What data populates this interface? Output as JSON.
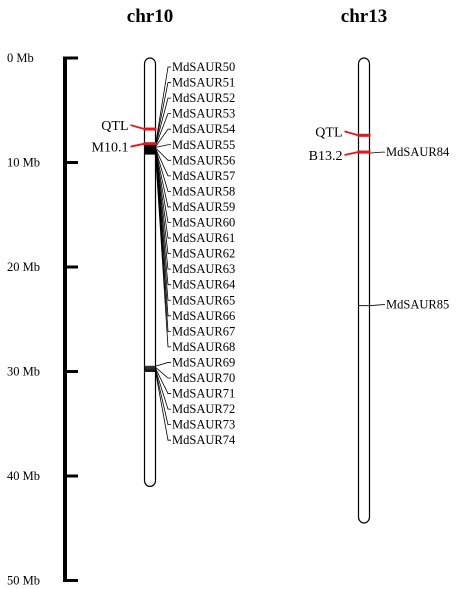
{
  "chart_data": {
    "type": "diagram",
    "scale": {
      "unit": "Mb",
      "min": 0,
      "max": 50,
      "ticks": [
        {
          "value": 0,
          "label": "0 Mb"
        },
        {
          "value": 10,
          "label": "10 Mb"
        },
        {
          "value": 20,
          "label": "20 Mb"
        },
        {
          "value": 30,
          "label": "30 Mb"
        },
        {
          "value": 40,
          "label": "40 Mb"
        },
        {
          "value": 50,
          "label": "50 Mb"
        }
      ]
    },
    "chromosomes": [
      {
        "name": "chr10",
        "length_mb": 41.0,
        "qtl": [
          {
            "label": "QTL",
            "position_mb": 6.8
          },
          {
            "label": "M10.1",
            "position_mb": 8.2
          }
        ],
        "genes": [
          {
            "name": "MdSAUR50",
            "position_mb": 8.3
          },
          {
            "name": "MdSAUR51",
            "position_mb": 8.35
          },
          {
            "name": "MdSAUR52",
            "position_mb": 8.4
          },
          {
            "name": "MdSAUR53",
            "position_mb": 8.45
          },
          {
            "name": "MdSAUR54",
            "position_mb": 8.5
          },
          {
            "name": "MdSAUR55",
            "position_mb": 8.55
          },
          {
            "name": "MdSAUR56",
            "position_mb": 8.6
          },
          {
            "name": "MdSAUR57",
            "position_mb": 8.65
          },
          {
            "name": "MdSAUR58",
            "position_mb": 8.7
          },
          {
            "name": "MdSAUR59",
            "position_mb": 8.75
          },
          {
            "name": "MdSAUR60",
            "position_mb": 8.8
          },
          {
            "name": "MdSAUR61",
            "position_mb": 8.85
          },
          {
            "name": "MdSAUR62",
            "position_mb": 8.9
          },
          {
            "name": "MdSAUR63",
            "position_mb": 8.95
          },
          {
            "name": "MdSAUR64",
            "position_mb": 9.0
          },
          {
            "name": "MdSAUR65",
            "position_mb": 9.05
          },
          {
            "name": "MdSAUR66",
            "position_mb": 9.1
          },
          {
            "name": "MdSAUR67",
            "position_mb": 9.15
          },
          {
            "name": "MdSAUR68",
            "position_mb": 9.2
          },
          {
            "name": "MdSAUR69",
            "position_mb": 29.5
          },
          {
            "name": "MdSAUR70",
            "position_mb": 29.6
          },
          {
            "name": "MdSAUR71",
            "position_mb": 29.7
          },
          {
            "name": "MdSAUR72",
            "position_mb": 29.8
          },
          {
            "name": "MdSAUR73",
            "position_mb": 29.9
          },
          {
            "name": "MdSAUR74",
            "position_mb": 30.0
          }
        ]
      },
      {
        "name": "chr13",
        "length_mb": 44.5,
        "qtl": [
          {
            "label": "QTL",
            "position_mb": 7.4
          },
          {
            "label": "B13.2",
            "position_mb": 9.0
          }
        ],
        "genes": [
          {
            "name": "MdSAUR84",
            "position_mb": 9.1
          },
          {
            "name": "MdSAUR85",
            "position_mb": 23.7
          }
        ]
      }
    ]
  },
  "colors": {
    "qtl": "#e8141b",
    "ink": "#000000",
    "chromosome_fill": "#ffffff"
  }
}
